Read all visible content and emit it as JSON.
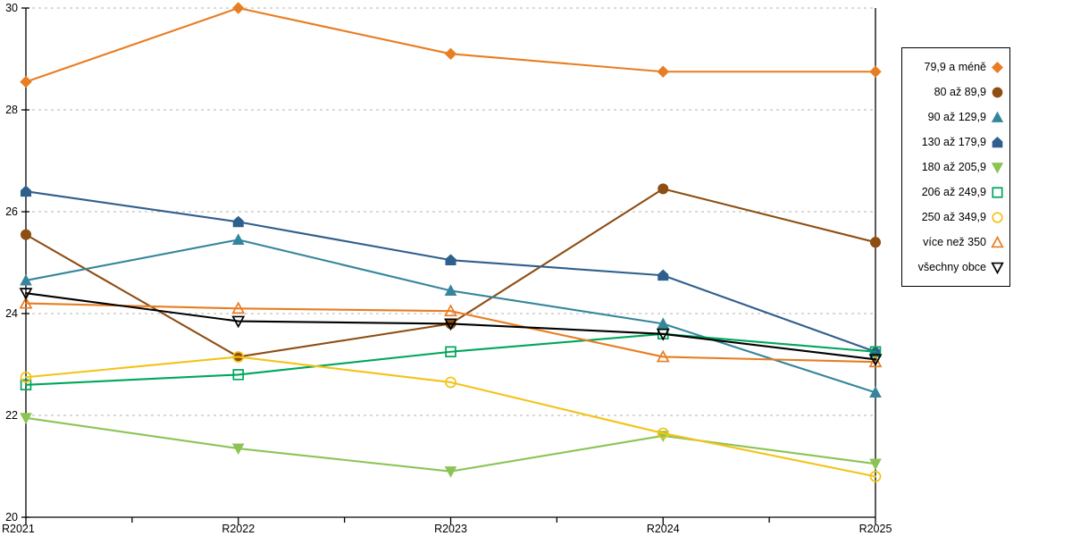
{
  "chart_data": {
    "type": "line",
    "title": "",
    "xlabel": "",
    "ylabel": "",
    "categories": [
      "R2021",
      "R2022",
      "R2023",
      "R2024",
      "R2025"
    ],
    "ylim": [
      20,
      30
    ],
    "y_ticks": [
      20,
      22,
      24,
      26,
      28,
      30
    ],
    "grid": "horizontal-dashed",
    "gridline_color": "#b3b3b3",
    "axis_color": "#000000",
    "legend_position": "right-outside",
    "series": [
      {
        "name": "79,9 a méně",
        "marker": "diamond",
        "fill": "filled",
        "color": "#E87D22",
        "values": [
          28.55,
          30.0,
          29.1,
          28.75,
          28.75
        ]
      },
      {
        "name": "80 až 89,9",
        "marker": "circle",
        "fill": "filled",
        "color": "#8E4D13",
        "values": [
          25.55,
          23.15,
          23.8,
          26.45,
          25.4
        ]
      },
      {
        "name": "90 až 129,9",
        "marker": "triangle-up",
        "fill": "filled",
        "color": "#35869C",
        "values": [
          24.65,
          25.45,
          24.45,
          23.8,
          22.45
        ]
      },
      {
        "name": "130 až 179,9",
        "marker": "pentagon",
        "fill": "filled",
        "color": "#2F5F8C",
        "values": [
          26.4,
          25.8,
          25.05,
          24.75,
          23.25
        ]
      },
      {
        "name": "180 až 205,9",
        "marker": "triangle-down",
        "fill": "filled",
        "color": "#8BC455",
        "values": [
          21.95,
          21.35,
          20.9,
          21.6,
          21.05
        ]
      },
      {
        "name": "206 až 249,9",
        "marker": "square",
        "fill": "open",
        "color": "#00A65C",
        "values": [
          22.6,
          22.8,
          23.25,
          23.6,
          23.25
        ]
      },
      {
        "name": "250 až 349,9",
        "marker": "circle",
        "fill": "open",
        "color": "#F3C318",
        "values": [
          22.75,
          23.15,
          22.65,
          21.65,
          20.8
        ]
      },
      {
        "name": "více než 350",
        "marker": "triangle-up",
        "fill": "open",
        "color": "#E87D22",
        "values": [
          24.2,
          24.1,
          24.05,
          23.15,
          23.05
        ]
      },
      {
        "name": "všechny obce",
        "marker": "triangle-down",
        "fill": "open",
        "color": "#000000",
        "values": [
          24.4,
          23.85,
          23.8,
          23.6,
          23.1
        ]
      }
    ]
  }
}
